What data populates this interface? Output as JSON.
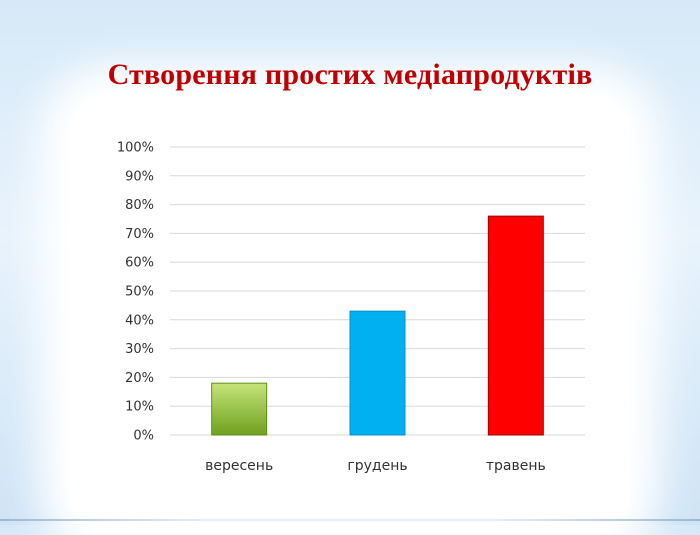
{
  "slide": {
    "title": "Створення простих медіапродуктів"
  },
  "colors": {
    "title": "#c00000",
    "grid": "#d9d9d9"
  },
  "chart_data": {
    "type": "bar",
    "title": "",
    "xlabel": "",
    "ylabel": "",
    "categories": [
      "вересень",
      "грудень",
      "травень"
    ],
    "values": [
      18,
      43,
      76
    ],
    "bar_colors": [
      "#8dc63f",
      "#00b0f0",
      "#ff0000"
    ],
    "ylim": [
      0,
      100
    ],
    "y_ticks": [
      "0%",
      "10%",
      "20%",
      "30%",
      "40%",
      "50%",
      "60%",
      "70%",
      "80%",
      "90%",
      "100%"
    ],
    "grid": true,
    "legend": "none"
  }
}
